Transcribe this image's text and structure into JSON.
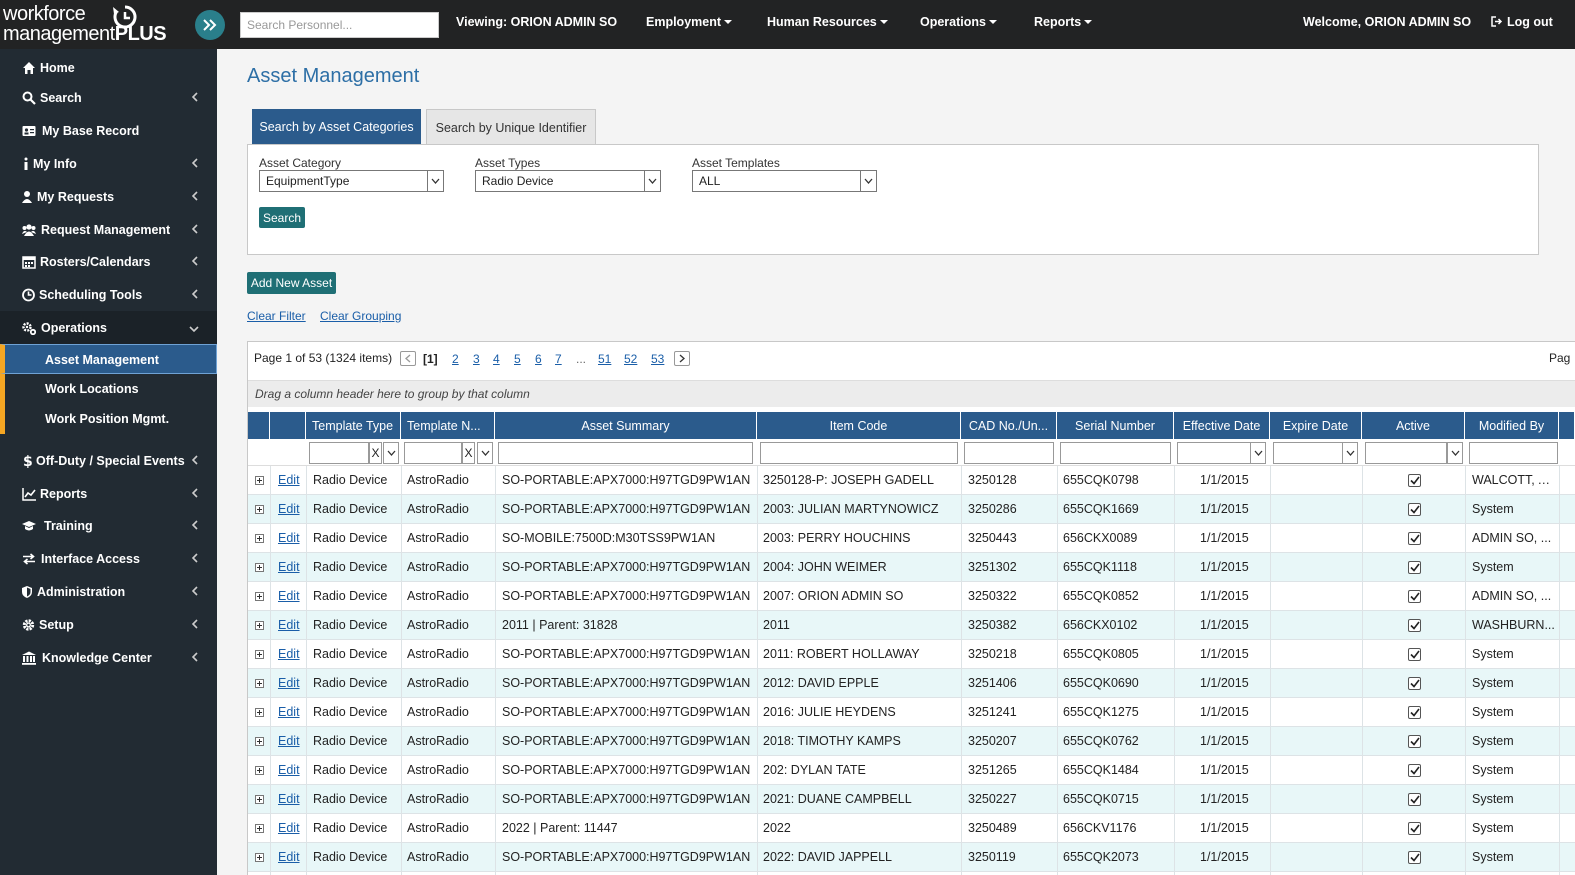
{
  "header": {
    "logo_top": "workforce",
    "logo_bottom_light": "management",
    "logo_bottom_bold": "PLUS",
    "search_placeholder": "Search Personnel...",
    "viewing": "Viewing: ORION ADMIN SO",
    "menus": [
      "Employment",
      "Human Resources",
      "Operations",
      "Reports"
    ],
    "welcome": "Welcome, ORION ADMIN SO",
    "logout": "Log out"
  },
  "sidebar": {
    "items": [
      {
        "label": "Home",
        "icon": "home-icon",
        "chevron": false
      },
      {
        "label": "Search",
        "icon": "search-icon",
        "chevron": true
      },
      {
        "label": "My Base Record",
        "icon": "id-card-icon",
        "chevron": false
      },
      {
        "label": "My Info",
        "icon": "info-icon",
        "chevron": true
      },
      {
        "label": "My Requests",
        "icon": "user-icon",
        "chevron": true
      },
      {
        "label": "Request Management",
        "icon": "users-icon",
        "chevron": true
      },
      {
        "label": "Rosters/Calendars",
        "icon": "calendar-icon",
        "chevron": true
      },
      {
        "label": "Scheduling Tools",
        "icon": "clock-icon",
        "chevron": true
      },
      {
        "label": "Operations",
        "icon": "cogs-icon",
        "chevron": "down"
      },
      {
        "label": "Off-Duty / Special Events",
        "icon": "dollar-icon",
        "chevron": true
      },
      {
        "label": "Reports",
        "icon": "line-chart-icon",
        "chevron": true
      },
      {
        "label": "Training",
        "icon": "graduation-cap-icon",
        "chevron": true
      },
      {
        "label": "Interface Access",
        "icon": "exchange-icon",
        "chevron": true
      },
      {
        "label": "Administration",
        "icon": "shield-icon",
        "chevron": true
      },
      {
        "label": "Setup",
        "icon": "gear-icon",
        "chevron": true
      },
      {
        "label": "Knowledge Center",
        "icon": "bank-icon",
        "chevron": true
      }
    ],
    "sub_items": [
      "Asset Management",
      "Work Locations",
      "Work Position Mgmt."
    ]
  },
  "main": {
    "title": "Asset Management",
    "tabs": [
      "Search by Asset Categories",
      "Search by Unique Identifier"
    ],
    "fields": [
      {
        "label": "Asset Category",
        "value": "EquipmentType"
      },
      {
        "label": "Asset Types",
        "value": "Radio Device"
      },
      {
        "label": "Asset Templates",
        "value": "ALL"
      }
    ],
    "search_button": "Search",
    "add_button": "Add New Asset",
    "clear_filter": "Clear Filter",
    "clear_grouping": "Clear Grouping"
  },
  "grid": {
    "pager_text": "Page 1 of 53 (1324 items)",
    "pages": [
      "[1]",
      "2",
      "3",
      "4",
      "5",
      "6",
      "7",
      "...",
      "51",
      "52",
      "53"
    ],
    "pager_right": "Pag",
    "group_hint": "Drag a column header here to group by that column",
    "columns": [
      "Template Type",
      "Template N...",
      "Asset Summary",
      "Item Code",
      "CAD No./Un...",
      "Serial Number",
      "Effective Date",
      "Expire Date",
      "Active",
      "Modified By"
    ],
    "edit_label": "Edit",
    "rows": [
      [
        "Radio Device",
        "AstroRadio",
        "SO-PORTABLE:APX7000:H97TGD9PW1AN",
        "3250128-P: JOSEPH GADELL",
        "3250128",
        "655CQK0798",
        "1/1/2015",
        "",
        "WALCOTT, A..."
      ],
      [
        "Radio Device",
        "AstroRadio",
        "SO-PORTABLE:APX7000:H97TGD9PW1AN",
        "2003: JULIAN MARTYNOWICZ",
        "3250286",
        "655CQK1669",
        "1/1/2015",
        "",
        "System"
      ],
      [
        "Radio Device",
        "AstroRadio",
        "SO-MOBILE:7500D:M30TSS9PW1AN",
        "2003: PERRY HOUCHINS",
        "3250443",
        "656CKX0089",
        "1/1/2015",
        "",
        "ADMIN SO, ..."
      ],
      [
        "Radio Device",
        "AstroRadio",
        "SO-PORTABLE:APX7000:H97TGD9PW1AN",
        "2004: JOHN WEIMER",
        "3251302",
        "655CQK1118",
        "1/1/2015",
        "",
        "System"
      ],
      [
        "Radio Device",
        "AstroRadio",
        "SO-PORTABLE:APX7000:H97TGD9PW1AN",
        "2007: ORION ADMIN SO",
        "3250322",
        "655CQK0852",
        "1/1/2015",
        "",
        "ADMIN SO, ..."
      ],
      [
        "Radio Device",
        "AstroRadio",
        "2011 | Parent: 31828",
        "2011",
        "3250382",
        "656CKX0102",
        "1/1/2015",
        "",
        "WASHBURN..."
      ],
      [
        "Radio Device",
        "AstroRadio",
        "SO-PORTABLE:APX7000:H97TGD9PW1AN",
        "2011: ROBERT HOLLAWAY",
        "3250218",
        "655CQK0805",
        "1/1/2015",
        "",
        "System"
      ],
      [
        "Radio Device",
        "AstroRadio",
        "SO-PORTABLE:APX7000:H97TGD9PW1AN",
        "2012: DAVID EPPLE",
        "3251406",
        "655CQK0690",
        "1/1/2015",
        "",
        "System"
      ],
      [
        "Radio Device",
        "AstroRadio",
        "SO-PORTABLE:APX7000:H97TGD9PW1AN",
        "2016: JULIE HEYDENS",
        "3251241",
        "655CQK1275",
        "1/1/2015",
        "",
        "System"
      ],
      [
        "Radio Device",
        "AstroRadio",
        "SO-PORTABLE:APX7000:H97TGD9PW1AN",
        "2018: TIMOTHY KAMPS",
        "3250207",
        "655CQK0762",
        "1/1/2015",
        "",
        "System"
      ],
      [
        "Radio Device",
        "AstroRadio",
        "SO-PORTABLE:APX7000:H97TGD9PW1AN",
        "202: DYLAN TATE",
        "3251265",
        "655CQK1484",
        "1/1/2015",
        "",
        "System"
      ],
      [
        "Radio Device",
        "AstroRadio",
        "SO-PORTABLE:APX7000:H97TGD9PW1AN",
        "2021: DUANE CAMPBELL",
        "3250227",
        "655CQK0715",
        "1/1/2015",
        "",
        "System"
      ],
      [
        "Radio Device",
        "AstroRadio",
        "2022 | Parent: 11447",
        "2022",
        "3250489",
        "656CKV1176",
        "1/1/2015",
        "",
        "System"
      ],
      [
        "Radio Device",
        "AstroRadio",
        "SO-PORTABLE:APX7000:H97TGD9PW1AN",
        "2022: DAVID JAPPELL",
        "3250119",
        "655CQK2073",
        "1/1/2015",
        "",
        "System"
      ]
    ],
    "active": [
      true,
      true,
      true,
      true,
      true,
      true,
      true,
      true,
      true,
      true,
      true,
      true,
      true,
      true
    ]
  },
  "colors": {
    "topbar": "#222324",
    "sidebar": "#222b33",
    "accent_blue": "#2b5b8c",
    "teal_button": "#1f6f75",
    "orange_marker": "#f5a623",
    "row_alt": "#e8f7f8"
  }
}
